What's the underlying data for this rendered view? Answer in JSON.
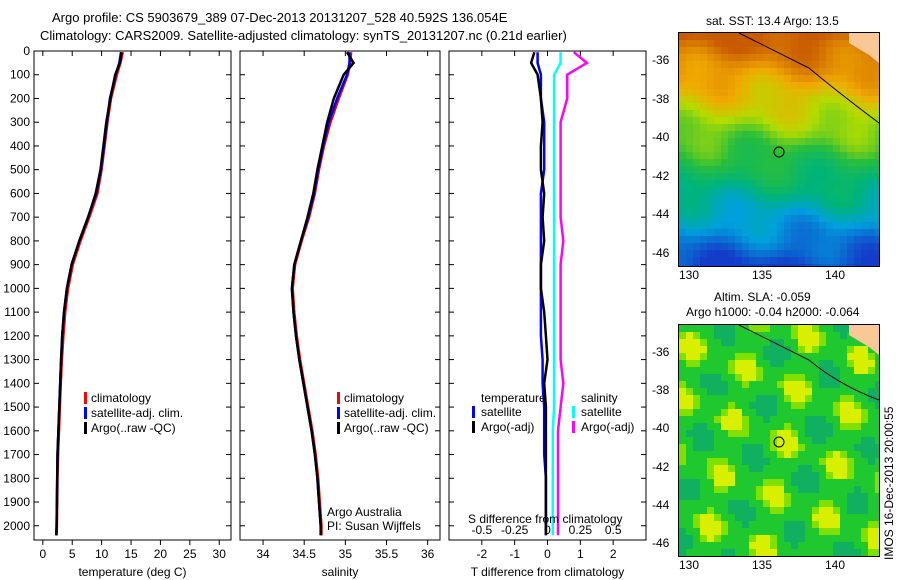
{
  "header": {
    "line1": "Argo profile: CS 5903679_389 07-Dec-2013 20131207_528 40.592S 136.054E",
    "line2": "Climatology: CARS2009. Satellite-adjusted climatology: synTS_20131207.nc (0.21d earlier)"
  },
  "colors": {
    "climatology": "#ff0000",
    "satellite": "#0000ff",
    "argo": "#000000",
    "sal_satellite": "#00ffff",
    "sal_argo": "#ff00ff"
  },
  "chart_data": [
    {
      "type": "line",
      "name": "temperature",
      "xlabel": "temperature (deg C)",
      "ylabel": "",
      "xlim": [
        -1.5,
        32
      ],
      "ylim": [
        2060,
        0
      ],
      "xticks": [
        "0",
        "5",
        "10",
        "15",
        "20",
        "25",
        "30"
      ],
      "xtickvals": [
        0,
        5,
        10,
        15,
        20,
        25,
        30
      ],
      "yticks": [
        "0",
        "100",
        "200",
        "300",
        "400",
        "500",
        "600",
        "700",
        "800",
        "900",
        "1000",
        "1100",
        "1200",
        "1300",
        "1400",
        "1500",
        "1600",
        "1700",
        "1800",
        "1900",
        "2000"
      ],
      "depth": [
        5,
        50,
        100,
        200,
        300,
        400,
        500,
        600,
        700,
        800,
        900,
        1000,
        1100,
        1200,
        1300,
        1400,
        1500,
        1600,
        1700,
        1800,
        1900,
        2000,
        2040
      ],
      "series": [
        {
          "name": "climatology",
          "color": "#ff0000",
          "values": [
            13.6,
            13.2,
            12.6,
            11.6,
            11.0,
            10.5,
            10.0,
            9.3,
            7.9,
            6.4,
            5.1,
            4.3,
            3.8,
            3.5,
            3.25,
            3.05,
            2.9,
            2.75,
            2.6,
            2.5,
            2.45,
            2.4,
            2.35
          ]
        },
        {
          "name": "satellite-adj. clim.",
          "color": "#0000ff",
          "values": [
            13.3,
            13.0,
            12.4,
            11.4,
            10.9,
            10.4,
            9.9,
            9.1,
            7.7,
            6.2,
            4.9,
            4.1,
            3.6,
            3.3,
            3.1,
            2.95,
            2.8,
            2.65,
            2.5,
            2.45,
            2.4,
            2.35,
            2.3
          ]
        },
        {
          "name": "Argo(..raw -QC)",
          "color": "#000000",
          "values": [
            13.4,
            13.1,
            12.3,
            11.5,
            10.8,
            10.3,
            9.8,
            9.0,
            7.7,
            6.2,
            4.9,
            4.1,
            3.6,
            3.3,
            3.1,
            2.95,
            2.8,
            2.65,
            2.5,
            2.45,
            2.4,
            2.35,
            2.3
          ]
        }
      ],
      "legend": [
        "climatology",
        "satellite-adj. clim.",
        "Argo(..raw -QC)"
      ]
    },
    {
      "type": "line",
      "name": "salinity",
      "xlabel": "salinity",
      "xlim": [
        33.72,
        36.15
      ],
      "ylim": [
        2060,
        0
      ],
      "xticks": [
        "34",
        "34.5",
        "35",
        "35.5",
        "36"
      ],
      "xtickvals": [
        34,
        34.5,
        35,
        35.5,
        36
      ],
      "depth": [
        5,
        50,
        100,
        200,
        300,
        400,
        500,
        600,
        700,
        800,
        900,
        1000,
        1100,
        1200,
        1300,
        1400,
        1500,
        1600,
        1700,
        1800,
        1900,
        2000,
        2040
      ],
      "series": [
        {
          "name": "climatology",
          "color": "#ff0000",
          "values": [
            35.07,
            35.06,
            35.03,
            34.92,
            34.82,
            34.74,
            34.68,
            34.63,
            34.56,
            34.47,
            34.39,
            34.36,
            34.38,
            34.41,
            34.45,
            34.5,
            34.55,
            34.6,
            34.64,
            34.67,
            34.69,
            34.71,
            34.71
          ]
        },
        {
          "name": "satellite-adj. clim.",
          "color": "#0000ff",
          "values": [
            35.05,
            35.05,
            35.02,
            34.9,
            34.8,
            34.73,
            34.67,
            34.62,
            34.55,
            34.46,
            34.38,
            34.35,
            34.37,
            34.4,
            34.44,
            34.49,
            34.54,
            34.59,
            34.63,
            34.66,
            34.68,
            34.7,
            34.7
          ]
        },
        {
          "name": "Argo(..raw -QC)",
          "color": "#000000",
          "values": [
            35.02,
            35.1,
            34.98,
            34.86,
            34.78,
            34.72,
            34.66,
            34.61,
            34.54,
            34.46,
            34.38,
            34.35,
            34.37,
            34.4,
            34.44,
            34.49,
            34.54,
            34.59,
            34.63,
            34.66,
            34.68,
            34.7,
            34.7
          ]
        }
      ],
      "legend": [
        "climatology",
        "satellite-adj. clim.",
        "Argo(..raw -QC)"
      ],
      "annotation": [
        "Argo Australia",
        "PI: Susan Wijffels"
      ]
    },
    {
      "type": "line",
      "name": "difference",
      "xlabel": "T difference from climatology",
      "x2label": "S difference from climatology",
      "xlim": [
        -3,
        3
      ],
      "ylim": [
        2060,
        0
      ],
      "xticks": [
        "-2",
        "-1",
        "0",
        "1",
        "2"
      ],
      "xtickvals": [
        -2,
        -1,
        0,
        1,
        2
      ],
      "x2ticks": [
        "-0.5",
        "-0.25",
        "0",
        "0.25",
        "0.5"
      ],
      "depth": [
        5,
        50,
        100,
        200,
        300,
        400,
        500,
        600,
        700,
        800,
        900,
        1000,
        1100,
        1200,
        1300,
        1400,
        1500,
        1600,
        1700,
        1800,
        1900,
        2000,
        2040
      ],
      "series": [
        {
          "name": "temperature satellite",
          "color": "#0000ff",
          "values": [
            -0.3,
            -0.3,
            -0.2,
            -0.2,
            -0.1,
            -0.1,
            -0.1,
            -0.2,
            -0.2,
            -0.2,
            -0.2,
            -0.2,
            -0.2,
            -0.2,
            -0.15,
            -0.15,
            -0.1,
            -0.1,
            -0.1,
            -0.05,
            -0.05,
            -0.05,
            -0.05
          ]
        },
        {
          "name": "temperature Argo(-adj)",
          "color": "#000000",
          "values": [
            -0.4,
            -0.5,
            -0.3,
            -0.2,
            -0.15,
            -0.2,
            -0.2,
            -0.1,
            -0.15,
            -0.1,
            -0.2,
            -0.2,
            -0.1,
            -0.05,
            0,
            -0.1,
            -0.05,
            -0.05,
            -0.05,
            -0.05,
            -0.05,
            -0.05,
            -0.05
          ]
        },
        {
          "name": "salinity satellite",
          "color": "#00ffff",
          "values": [
            0.1,
            0.1,
            0.05,
            0.05,
            0.05,
            0.05,
            0.05,
            0.05,
            0.05,
            0.05,
            0.05,
            0.05,
            0.05,
            0.05,
            0.05,
            0.05,
            0.05,
            0.04,
            0.04,
            0.04,
            0.04,
            0.04,
            0.04
          ]
        },
        {
          "name": "salinity Argo(-adj)",
          "color": "#ff00ff",
          "values": [
            0.2,
            0.3,
            0.15,
            0.15,
            0.1,
            0.1,
            0.1,
            0.1,
            0.1,
            0.12,
            0.1,
            0.1,
            0.1,
            0.1,
            0.1,
            0.12,
            0.1,
            0.08,
            0.08,
            0.08,
            0.08,
            0.08,
            0.08
          ]
        }
      ],
      "legend_headers": [
        "temperature",
        "salinity"
      ],
      "legend": [
        "satellite",
        "Argo(-adj)",
        "satellite",
        "Argo(-adj)"
      ]
    }
  ],
  "maps": [
    {
      "title": "sat. SST: 13.4 Argo: 13.5",
      "xticks": [
        "130",
        "135",
        "140"
      ],
      "yticks": [
        "-36",
        "-38",
        "-40",
        "-42",
        "-44",
        "-46"
      ]
    },
    {
      "title1": "Altim. SLA: -0.059",
      "title2": "Argo h1000: -0.04 h2000: -0.064",
      "xticks": [
        "130",
        "135",
        "140"
      ],
      "yticks": [
        "-36",
        "-38",
        "-40",
        "-42",
        "-44",
        "-46"
      ],
      "sidelabel": "IMOS 16-Dec-2013 20:00:55"
    }
  ]
}
